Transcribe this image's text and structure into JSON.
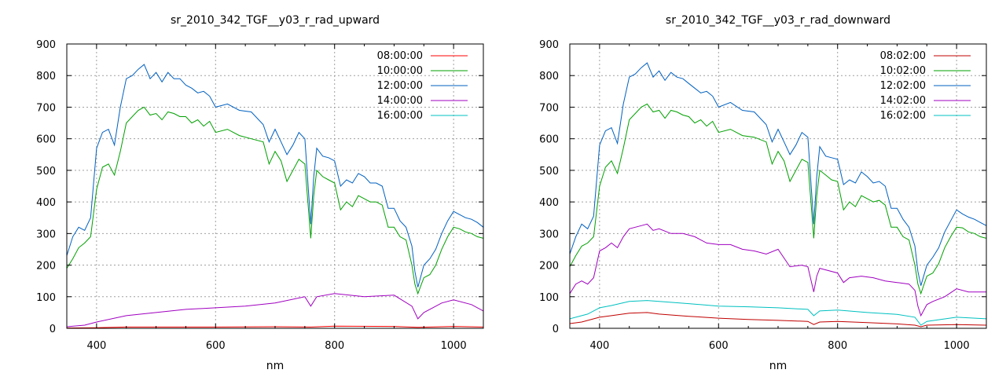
{
  "chart_data": [
    {
      "type": "line",
      "title": "sr_2010_342_TGF__y03_r_rad_upward",
      "xlabel": "nm",
      "ylabel": "",
      "xlim": [
        350,
        1050
      ],
      "ylim": [
        0,
        900
      ],
      "xticks": [
        400,
        600,
        800,
        1000
      ],
      "yticks": [
        0,
        100,
        200,
        300,
        400,
        500,
        600,
        700,
        800,
        900
      ],
      "grid": true,
      "legend_position": "top-right",
      "series": [
        {
          "name": "08:00:00",
          "color": "#ff0000",
          "x": [
            350,
            400,
            450,
            500,
            600,
            700,
            760,
            800,
            900,
            940,
            1000,
            1050
          ],
          "y": [
            1,
            2,
            4,
            4,
            4,
            5,
            4,
            7,
            6,
            3,
            6,
            4
          ]
        },
        {
          "name": "10:00:00",
          "color": "#00a000",
          "x": [
            350,
            360,
            370,
            380,
            390,
            400,
            410,
            420,
            430,
            440,
            450,
            460,
            470,
            480,
            490,
            500,
            510,
            520,
            530,
            540,
            550,
            560,
            570,
            580,
            590,
            600,
            620,
            640,
            660,
            680,
            690,
            700,
            710,
            720,
            730,
            740,
            750,
            760,
            765,
            770,
            780,
            790,
            800,
            810,
            820,
            830,
            840,
            850,
            860,
            870,
            880,
            890,
            900,
            910,
            920,
            930,
            935,
            940,
            950,
            960,
            970,
            980,
            990,
            1000,
            1010,
            1020,
            1030,
            1040,
            1050
          ],
          "y": [
            190,
            220,
            255,
            270,
            290,
            440,
            510,
            520,
            485,
            560,
            650,
            670,
            690,
            700,
            675,
            680,
            660,
            685,
            680,
            670,
            670,
            650,
            660,
            640,
            655,
            620,
            630,
            610,
            600,
            590,
            520,
            560,
            530,
            465,
            500,
            535,
            520,
            285,
            420,
            500,
            480,
            470,
            460,
            375,
            400,
            385,
            420,
            410,
            400,
            400,
            390,
            320,
            320,
            290,
            280,
            200,
            140,
            110,
            160,
            170,
            200,
            250,
            290,
            320,
            315,
            305,
            300,
            290,
            285
          ]
        },
        {
          "name": "12:00:00",
          "color": "#0060c0",
          "x": [
            350,
            360,
            370,
            380,
            390,
            400,
            410,
            420,
            430,
            440,
            450,
            460,
            470,
            480,
            490,
            500,
            510,
            520,
            530,
            540,
            550,
            560,
            570,
            580,
            590,
            600,
            620,
            640,
            660,
            680,
            690,
            700,
            710,
            720,
            730,
            740,
            750,
            760,
            765,
            770,
            780,
            790,
            800,
            810,
            820,
            830,
            840,
            850,
            860,
            870,
            880,
            890,
            900,
            910,
            920,
            930,
            935,
            940,
            950,
            960,
            970,
            980,
            990,
            1000,
            1010,
            1020,
            1030,
            1040,
            1050
          ],
          "y": [
            230,
            290,
            320,
            310,
            350,
            570,
            620,
            630,
            580,
            700,
            790,
            800,
            820,
            835,
            790,
            810,
            780,
            810,
            790,
            790,
            770,
            760,
            745,
            750,
            735,
            700,
            710,
            690,
            685,
            645,
            590,
            630,
            590,
            550,
            580,
            620,
            600,
            330,
            480,
            570,
            545,
            540,
            530,
            450,
            470,
            460,
            490,
            480,
            460,
            460,
            450,
            380,
            380,
            340,
            320,
            260,
            180,
            130,
            200,
            220,
            250,
            300,
            340,
            370,
            360,
            350,
            345,
            335,
            320
          ]
        },
        {
          "name": "14:00:00",
          "color": "#a000c0",
          "x": [
            350,
            380,
            400,
            450,
            500,
            550,
            600,
            650,
            700,
            750,
            760,
            770,
            800,
            850,
            900,
            930,
            940,
            950,
            980,
            1000,
            1030,
            1050
          ],
          "y": [
            5,
            10,
            20,
            40,
            50,
            60,
            65,
            70,
            80,
            100,
            70,
            100,
            110,
            100,
            105,
            70,
            30,
            50,
            80,
            90,
            75,
            55
          ]
        },
        {
          "name": "16:00:00",
          "color": "#00c0c0",
          "x": [],
          "y": []
        }
      ]
    },
    {
      "type": "line",
      "title": "sr_2010_342_TGF__y03_r_rad_downward",
      "xlabel": "nm",
      "ylabel": "",
      "xlim": [
        350,
        1050
      ],
      "ylim": [
        0,
        900
      ],
      "xticks": [
        400,
        600,
        800,
        1000
      ],
      "yticks": [
        0,
        100,
        200,
        300,
        400,
        500,
        600,
        700,
        800,
        900
      ],
      "grid": true,
      "legend_position": "top-right",
      "series": [
        {
          "name": "08:02:00",
          "color": "#c00000",
          "x": [
            350,
            370,
            400,
            420,
            450,
            480,
            500,
            550,
            600,
            650,
            700,
            750,
            760,
            770,
            800,
            850,
            900,
            930,
            940,
            950,
            1000,
            1050
          ],
          "y": [
            15,
            20,
            35,
            40,
            48,
            50,
            45,
            38,
            32,
            28,
            25,
            22,
            12,
            20,
            22,
            18,
            14,
            10,
            5,
            10,
            12,
            10
          ]
        },
        {
          "name": "10:02:00",
          "color": "#00a000",
          "x": [
            350,
            360,
            370,
            380,
            390,
            400,
            410,
            420,
            430,
            440,
            450,
            460,
            470,
            480,
            490,
            500,
            510,
            520,
            530,
            540,
            550,
            560,
            570,
            580,
            590,
            600,
            620,
            640,
            660,
            680,
            690,
            700,
            710,
            720,
            730,
            740,
            750,
            760,
            765,
            770,
            780,
            790,
            800,
            810,
            820,
            830,
            840,
            850,
            860,
            870,
            880,
            890,
            900,
            910,
            920,
            930,
            935,
            940,
            950,
            960,
            970,
            980,
            990,
            1000,
            1010,
            1020,
            1030,
            1040,
            1050
          ],
          "y": [
            195,
            230,
            260,
            270,
            290,
            450,
            510,
            530,
            490,
            570,
            660,
            680,
            700,
            710,
            685,
            690,
            665,
            690,
            685,
            675,
            670,
            650,
            660,
            640,
            655,
            620,
            630,
            610,
            605,
            590,
            520,
            560,
            530,
            465,
            500,
            535,
            525,
            285,
            420,
            500,
            485,
            470,
            465,
            375,
            400,
            385,
            420,
            410,
            400,
            405,
            390,
            320,
            320,
            290,
            280,
            200,
            140,
            110,
            165,
            175,
            205,
            255,
            290,
            320,
            318,
            305,
            300,
            290,
            285
          ]
        },
        {
          "name": "12:02:00",
          "color": "#0060c0",
          "x": [
            350,
            360,
            370,
            380,
            390,
            400,
            410,
            420,
            430,
            440,
            450,
            460,
            470,
            480,
            490,
            500,
            510,
            520,
            530,
            540,
            550,
            560,
            570,
            580,
            590,
            600,
            620,
            640,
            660,
            680,
            690,
            700,
            710,
            720,
            730,
            740,
            750,
            760,
            765,
            770,
            780,
            790,
            800,
            810,
            820,
            830,
            840,
            850,
            860,
            870,
            880,
            890,
            900,
            910,
            920,
            930,
            935,
            940,
            950,
            960,
            970,
            980,
            990,
            1000,
            1010,
            1020,
            1030,
            1040,
            1050
          ],
          "y": [
            235,
            290,
            330,
            315,
            355,
            580,
            625,
            635,
            585,
            710,
            795,
            805,
            825,
            840,
            795,
            815,
            785,
            810,
            795,
            790,
            775,
            760,
            745,
            750,
            735,
            700,
            715,
            690,
            685,
            645,
            590,
            630,
            590,
            550,
            580,
            620,
            605,
            330,
            480,
            575,
            545,
            540,
            535,
            455,
            470,
            460,
            495,
            480,
            460,
            465,
            450,
            380,
            380,
            345,
            320,
            260,
            180,
            135,
            200,
            225,
            255,
            305,
            340,
            375,
            362,
            352,
            345,
            335,
            325
          ]
        },
        {
          "name": "14:02:00",
          "color": "#a000c0",
          "x": [
            350,
            360,
            370,
            380,
            390,
            400,
            410,
            420,
            430,
            440,
            450,
            460,
            470,
            480,
            490,
            500,
            520,
            540,
            560,
            580,
            600,
            620,
            640,
            660,
            680,
            700,
            720,
            740,
            750,
            760,
            765,
            770,
            780,
            800,
            810,
            820,
            840,
            860,
            880,
            900,
            920,
            930,
            935,
            940,
            950,
            960,
            980,
            1000,
            1020,
            1050
          ],
          "y": [
            110,
            140,
            150,
            140,
            160,
            245,
            255,
            270,
            255,
            290,
            315,
            320,
            325,
            330,
            310,
            315,
            300,
            300,
            290,
            270,
            265,
            265,
            250,
            245,
            235,
            250,
            195,
            200,
            195,
            115,
            165,
            190,
            185,
            175,
            145,
            160,
            165,
            160,
            150,
            145,
            140,
            120,
            70,
            40,
            75,
            85,
            100,
            125,
            115,
            115
          ]
        },
        {
          "name": "16:02:00",
          "color": "#00c0c0",
          "x": [
            350,
            380,
            400,
            420,
            450,
            480,
            500,
            550,
            600,
            650,
            700,
            750,
            760,
            770,
            800,
            850,
            900,
            930,
            940,
            950,
            1000,
            1050
          ],
          "y": [
            30,
            45,
            65,
            72,
            85,
            88,
            85,
            78,
            70,
            68,
            65,
            60,
            40,
            55,
            58,
            50,
            44,
            35,
            10,
            22,
            35,
            30
          ]
        }
      ]
    }
  ]
}
